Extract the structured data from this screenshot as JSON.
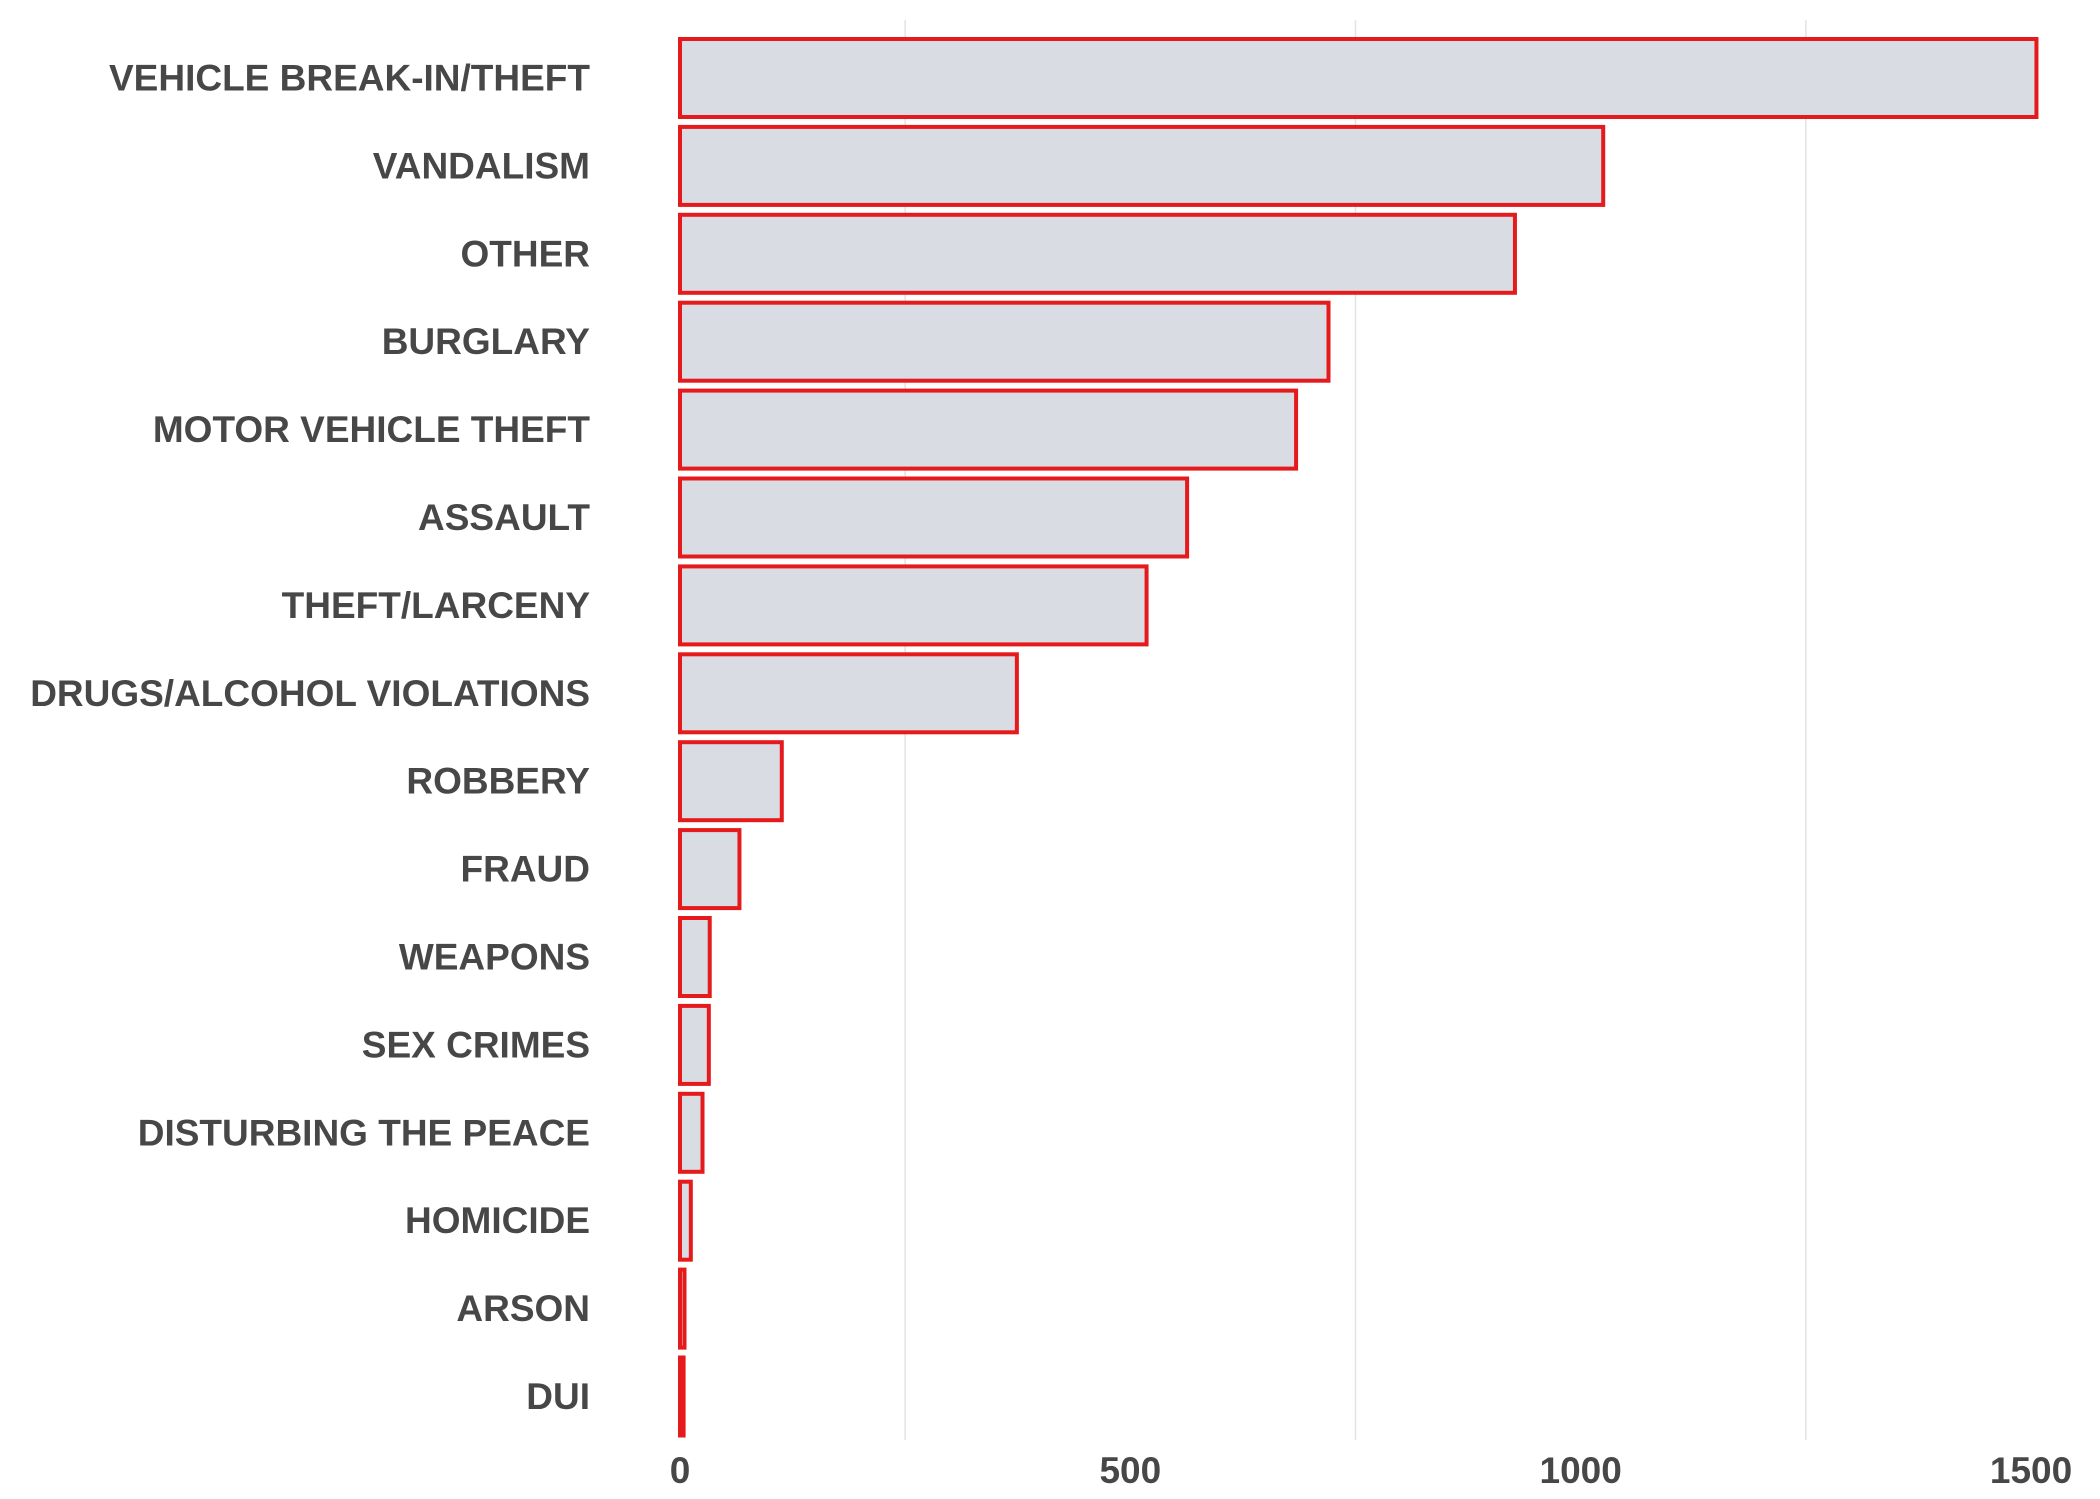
{
  "chart_data": {
    "type": "bar",
    "orientation": "horizontal",
    "title": "",
    "xlabel": "",
    "ylabel": "",
    "categories": [
      "VEHICLE BREAK-IN/THEFT",
      "VANDALISM",
      "OTHER",
      "BURGLARY",
      "MOTOR VEHICLE THEFT",
      "ASSAULT",
      "THEFT/LARCENY",
      "DRUGS/ALCOHOL VIOLATIONS",
      "ROBBERY",
      "FRAUD",
      "WEAPONS",
      "SEX CRIMES",
      "DISTURBING THE PEACE",
      "HOMICIDE",
      "ARSON",
      "DUI"
    ],
    "values": [
      1506,
      1025,
      927,
      720,
      684,
      563,
      518,
      374,
      113,
      66,
      33,
      32,
      25,
      12,
      5,
      4
    ],
    "xlim": [
      0,
      1530
    ],
    "xticks": [
      0,
      500,
      1000,
      1500
    ],
    "xtick_labels": [
      "0",
      "500",
      "1000",
      "1500"
    ],
    "gridlines_at": [
      250,
      750,
      1250
    ],
    "grid": true,
    "legend": "none",
    "colors": {
      "bar_fill": "#d9dde3",
      "bar_edge": "#e41a1c",
      "gridline": "#e3e3e3",
      "text": "#474747"
    }
  }
}
